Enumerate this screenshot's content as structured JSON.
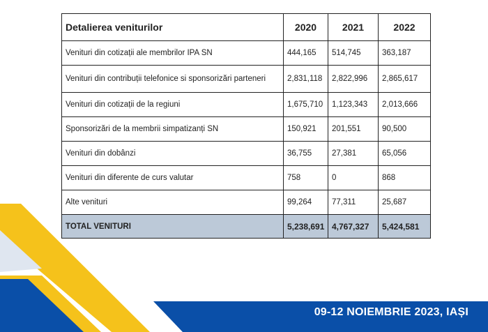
{
  "table": {
    "header": [
      "Detalierea veniturilor",
      "2020",
      "2021",
      "2022"
    ],
    "rows": [
      [
        "Venituri din cotizații ale membrilor IPA SN",
        "444,165",
        "514,745",
        "363,187"
      ],
      [
        "Venituri din contribuții telefonice si sponsorizări parteneri",
        "2,831,118",
        "2,822,996",
        "2,865,617"
      ],
      [
        "Venituri din cotizații de la regiuni",
        "1,675,710",
        "1,123,343",
        "2,013,666"
      ],
      [
        "Sponsorizări de la membrii simpatizanți SN",
        "150,921",
        "201,551",
        "90,500"
      ],
      [
        "Venituri din dobânzi",
        "36,755",
        "27,381",
        "65,056"
      ],
      [
        "Venituri din diferente de curs valutar",
        "758",
        "0",
        "868"
      ],
      [
        "Alte venituri",
        "99,264",
        "77,311",
        "25,687"
      ]
    ],
    "total": [
      "TOTAL VENITURI",
      "5,238,691",
      "4,767,327",
      "5,424,581"
    ]
  },
  "footer": {
    "event": "09-12 NOIEMBRIE 2023, IAȘI"
  },
  "colors": {
    "blue": "#0a4fa8",
    "yellow": "#f5c21b",
    "total_bg": "#bcc9d8"
  }
}
